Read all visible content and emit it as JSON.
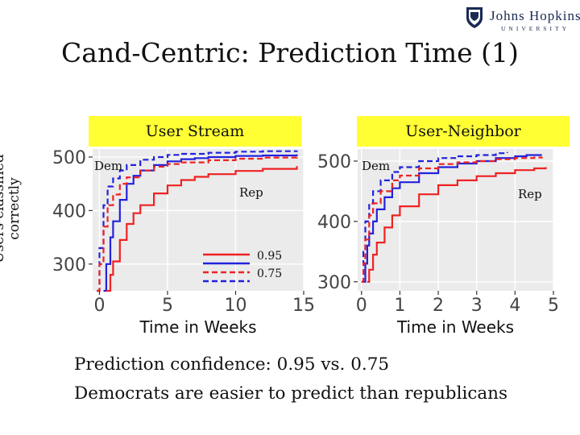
{
  "logo": {
    "name": "Johns Hopkins",
    "sub": "UNIVERSITY"
  },
  "slide": {
    "title": "Cand-Centric: Prediction Time (1)"
  },
  "y_axis_title": {
    "line1": "Users classified",
    "line2": "correctly"
  },
  "captions": [
    "Prediction confidence: 0.95 vs. 0.75",
    "Democrats are easier to predict than republicans"
  ],
  "colors": {
    "dem": "#2222dd",
    "rep": "#ee2222",
    "panel_label_bg": "#ffff33",
    "plot_bg": "#ebebeb"
  },
  "chart_data": [
    {
      "type": "line",
      "panel_label": "User Stream",
      "xlabel": "Time in Weeks",
      "ylabel": "Users classified correctly",
      "xlim": [
        -0.5,
        15
      ],
      "ylim": [
        250,
        515
      ],
      "xticks": [
        0,
        5,
        10,
        15
      ],
      "yticks": [
        300,
        400,
        500
      ],
      "annotations": [
        "Dem",
        "Rep"
      ],
      "legend": {
        "placement": "bottom-right",
        "entries": [
          "0.95",
          "0.75"
        ]
      },
      "series": [
        {
          "name": "Dem 0.95",
          "party": "dem",
          "style": "solid",
          "x": [
            0.3,
            0.5,
            0.8,
            1.0,
            1.5,
            2.0,
            2.5,
            3.0,
            4.0,
            5.0,
            6.0,
            7.0,
            8.0,
            10.0,
            12.0,
            14.5
          ],
          "y": [
            250,
            300,
            350,
            380,
            420,
            450,
            465,
            475,
            485,
            492,
            496,
            498,
            500,
            502,
            503,
            505
          ]
        },
        {
          "name": "Rep 0.95",
          "party": "rep",
          "style": "solid",
          "x": [
            0.5,
            0.8,
            1.0,
            1.5,
            2.0,
            2.5,
            3.0,
            4.0,
            5.0,
            6.0,
            7.0,
            8.0,
            10.0,
            12.0,
            14.5
          ],
          "y": [
            250,
            280,
            305,
            345,
            375,
            395,
            410,
            432,
            447,
            457,
            463,
            468,
            474,
            478,
            483
          ]
        },
        {
          "name": "Dem 0.75",
          "party": "dem",
          "style": "dashed",
          "x": [
            -0.2,
            0.0,
            0.3,
            0.6,
            1.0,
            1.5,
            2.0,
            3.0,
            4.0,
            5.0,
            6.0,
            8.0,
            10.0,
            12.0,
            14.5
          ],
          "y": [
            250,
            330,
            410,
            445,
            460,
            475,
            485,
            495,
            500,
            504,
            506,
            508,
            510,
            511,
            512
          ]
        },
        {
          "name": "Rep 0.75",
          "party": "rep",
          "style": "dashed",
          "x": [
            -0.2,
            0.0,
            0.3,
            0.6,
            1.0,
            1.5,
            2.0,
            3.0,
            4.0,
            5.0,
            6.0,
            8.0,
            10.0,
            12.0,
            14.5
          ],
          "y": [
            250,
            300,
            370,
            410,
            430,
            450,
            462,
            475,
            482,
            487,
            490,
            494,
            497,
            499,
            502
          ]
        }
      ]
    },
    {
      "type": "line",
      "panel_label": "User-Neighbor",
      "xlabel": "Time in Weeks",
      "ylabel": "Users classified correctly",
      "xlim": [
        -0.1,
        5
      ],
      "ylim": [
        285,
        520
      ],
      "xticks": [
        0,
        1,
        2,
        3,
        4,
        5
      ],
      "yticks": [
        300,
        400,
        500
      ],
      "annotations": [
        "Dem",
        "Rep"
      ],
      "series": [
        {
          "name": "Dem 0.95",
          "party": "dem",
          "style": "solid",
          "x": [
            0.05,
            0.1,
            0.15,
            0.2,
            0.3,
            0.4,
            0.6,
            0.8,
            1.0,
            1.5,
            2.0,
            2.5,
            3.0,
            3.5,
            4.0,
            4.3,
            4.7
          ],
          "y": [
            300,
            330,
            360,
            380,
            400,
            420,
            440,
            455,
            465,
            480,
            490,
            496,
            500,
            505,
            508,
            510,
            510
          ]
        },
        {
          "name": "Rep 0.95",
          "party": "rep",
          "style": "solid",
          "x": [
            0.15,
            0.2,
            0.3,
            0.4,
            0.6,
            0.8,
            1.0,
            1.5,
            2.0,
            2.5,
            3.0,
            3.5,
            4.0,
            4.5,
            4.8
          ],
          "y": [
            300,
            320,
            345,
            365,
            390,
            410,
            425,
            445,
            460,
            468,
            475,
            480,
            485,
            488,
            490
          ]
        },
        {
          "name": "Dem 0.75",
          "party": "dem",
          "style": "dashed",
          "x": [
            0.0,
            0.05,
            0.1,
            0.2,
            0.3,
            0.5,
            0.8,
            1.0,
            1.5,
            2.0,
            2.5,
            3.0,
            3.5,
            3.8
          ],
          "y": [
            300,
            350,
            400,
            430,
            450,
            468,
            482,
            490,
            500,
            505,
            508,
            510,
            513,
            515
          ]
        },
        {
          "name": "Rep 0.75",
          "party": "rep",
          "style": "dashed",
          "x": [
            0.0,
            0.05,
            0.1,
            0.2,
            0.3,
            0.5,
            0.8,
            1.0,
            1.5,
            2.0,
            2.5,
            3.0,
            3.5,
            4.0,
            4.5,
            4.7
          ],
          "y": [
            300,
            330,
            370,
            410,
            430,
            450,
            468,
            476,
            488,
            495,
            498,
            500,
            503,
            505,
            506,
            507
          ]
        }
      ]
    }
  ]
}
